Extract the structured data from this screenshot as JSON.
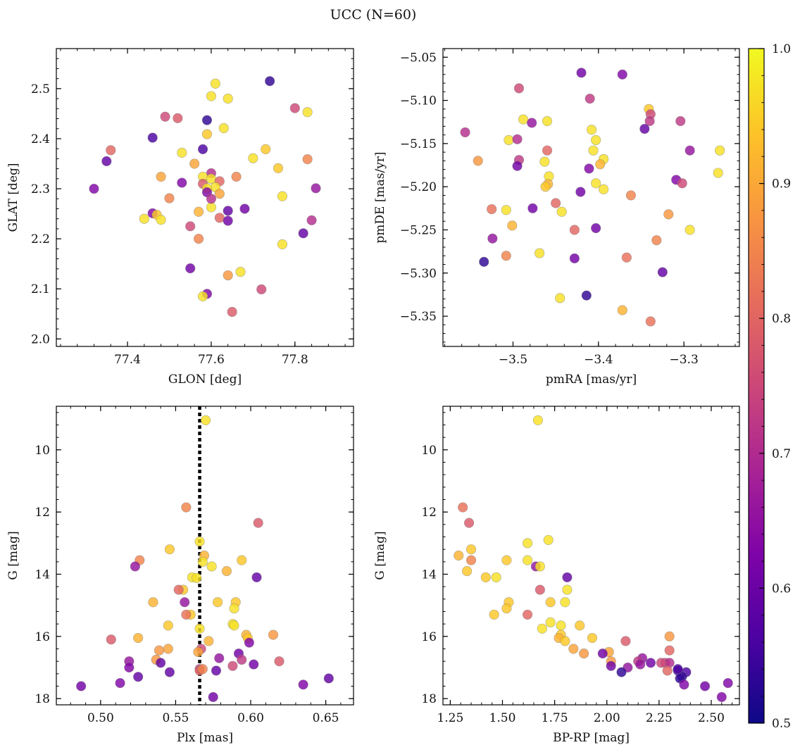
{
  "title": "UCC (N=60)",
  "colorbar": {
    "range": [
      0.5,
      1.0
    ],
    "ticks": [
      0.5,
      0.6,
      0.7,
      0.8,
      0.9,
      1.0
    ],
    "tick_labels": [
      "0.5",
      "0.6",
      "0.7",
      "0.8",
      "0.9",
      "1.0"
    ],
    "colormap": "plasma"
  },
  "chart_data": [
    {
      "id": "sky",
      "type": "scatter",
      "xlabel": "GLON [deg]",
      "ylabel": "GLAT [deg]",
      "xlim": [
        77.23,
        77.94
      ],
      "ylim": [
        1.985,
        2.58
      ],
      "y_inverted": false,
      "xticks": [
        77.4,
        77.6,
        77.8
      ],
      "xtick_labels": [
        "77.4",
        "77.6",
        "77.8"
      ],
      "yticks": [
        2.0,
        2.1,
        2.2,
        2.3,
        2.4,
        2.5
      ],
      "ytick_labels": [
        "2.0",
        "2.1",
        "2.2",
        "2.3",
        "2.4",
        "2.5"
      ],
      "points": [
        [
          77.61,
          2.51,
          0.98
        ],
        [
          77.74,
          2.515,
          0.52
        ],
        [
          77.6,
          2.485,
          0.98
        ],
        [
          77.64,
          2.48,
          0.98
        ],
        [
          77.83,
          2.453,
          0.98
        ],
        [
          77.8,
          2.461,
          0.75
        ],
        [
          77.49,
          2.444,
          0.75
        ],
        [
          77.52,
          2.441,
          0.78
        ],
        [
          77.59,
          2.437,
          0.52
        ],
        [
          77.63,
          2.421,
          0.98
        ],
        [
          77.59,
          2.409,
          0.95
        ],
        [
          77.46,
          2.402,
          0.55
        ],
        [
          77.36,
          2.377,
          0.8
        ],
        [
          77.53,
          2.372,
          0.98
        ],
        [
          77.58,
          2.379,
          0.55
        ],
        [
          77.73,
          2.379,
          0.95
        ],
        [
          77.35,
          2.355,
          0.58
        ],
        [
          77.7,
          2.361,
          0.98
        ],
        [
          77.83,
          2.359,
          0.85
        ],
        [
          77.76,
          2.341,
          0.95
        ],
        [
          77.6,
          2.331,
          0.7
        ],
        [
          77.58,
          2.324,
          0.98
        ],
        [
          77.48,
          2.324,
          0.9
        ],
        [
          77.6,
          2.32,
          0.98
        ],
        [
          77.62,
          2.315,
          0.8
        ],
        [
          77.66,
          2.324,
          0.85
        ],
        [
          77.53,
          2.312,
          0.62
        ],
        [
          77.58,
          2.31,
          0.78
        ],
        [
          77.61,
          2.303,
          0.98
        ],
        [
          77.59,
          2.301,
          0.98
        ],
        [
          77.32,
          2.3,
          0.62
        ],
        [
          77.85,
          2.301,
          0.65
        ],
        [
          77.59,
          2.293,
          0.62
        ],
        [
          77.77,
          2.285,
          0.98
        ],
        [
          77.5,
          2.281,
          0.85
        ],
        [
          77.64,
          2.256,
          0.58
        ],
        [
          77.6,
          2.263,
          0.98
        ],
        [
          77.57,
          2.254,
          0.92
        ],
        [
          77.46,
          2.251,
          0.62
        ],
        [
          77.44,
          2.24,
          0.98
        ],
        [
          77.47,
          2.248,
          0.95
        ],
        [
          77.48,
          2.238,
          0.98
        ],
        [
          77.62,
          2.242,
          0.8
        ],
        [
          77.64,
          2.236,
          0.6
        ],
        [
          77.84,
          2.237,
          0.7
        ],
        [
          77.55,
          2.225,
          0.75
        ],
        [
          77.82,
          2.211,
          0.58
        ],
        [
          77.77,
          2.189,
          0.98
        ],
        [
          77.55,
          2.141,
          0.6
        ],
        [
          77.67,
          2.134,
          0.98
        ],
        [
          77.64,
          2.127,
          0.88
        ],
        [
          77.72,
          2.099,
          0.75
        ],
        [
          77.59,
          2.09,
          0.62
        ],
        [
          77.58,
          2.085,
          0.98
        ],
        [
          77.65,
          2.054,
          0.78
        ],
        [
          77.6,
          2.28,
          0.7
        ],
        [
          77.62,
          2.29,
          0.9
        ],
        [
          77.56,
          2.35,
          0.9
        ],
        [
          77.68,
          2.26,
          0.6
        ],
        [
          77.57,
          2.2,
          0.85
        ]
      ]
    },
    {
      "id": "pm",
      "type": "scatter",
      "xlabel": "pmRA [mas/yr]",
      "ylabel": "pmDE [mas/yr]",
      "xlim": [
        -3.582,
        -3.235
      ],
      "ylim": [
        -5.385,
        -5.04
      ],
      "y_inverted": false,
      "xticks": [
        -3.5,
        -3.4,
        -3.3
      ],
      "xtick_labels": [
        "−3.5",
        "−3.4",
        "−3.3"
      ],
      "yticks": [
        -5.35,
        -5.3,
        -5.25,
        -5.2,
        -5.15,
        -5.1,
        -5.05
      ],
      "ytick_labels": [
        "−5.35",
        "−5.30",
        "−5.25",
        "−5.20",
        "−5.15",
        "−5.10",
        "−5.05"
      ],
      "points": [
        [
          -3.42,
          -5.068,
          0.6
        ],
        [
          -3.372,
          -5.07,
          0.62
        ],
        [
          -3.41,
          -5.098,
          0.72
        ],
        [
          -3.493,
          -5.086,
          0.75
        ],
        [
          -3.341,
          -5.11,
          0.95
        ],
        [
          -3.339,
          -5.116,
          0.75
        ],
        [
          -3.34,
          -5.124,
          0.72
        ],
        [
          -3.304,
          -5.124,
          0.72
        ],
        [
          -3.488,
          -5.122,
          0.98
        ],
        [
          -3.478,
          -5.126,
          0.65
        ],
        [
          -3.46,
          -5.124,
          0.98
        ],
        [
          -3.556,
          -5.137,
          0.7
        ],
        [
          -3.346,
          -5.133,
          0.58
        ],
        [
          -3.408,
          -5.134,
          0.98
        ],
        [
          -3.505,
          -5.146,
          0.98
        ],
        [
          -3.495,
          -5.145,
          0.7
        ],
        [
          -3.403,
          -5.146,
          0.98
        ],
        [
          -3.46,
          -5.158,
          0.8
        ],
        [
          -3.406,
          -5.158,
          0.98
        ],
        [
          -3.293,
          -5.158,
          0.65
        ],
        [
          -3.258,
          -5.158,
          0.98
        ],
        [
          -3.541,
          -5.17,
          0.88
        ],
        [
          -3.493,
          -5.169,
          0.72
        ],
        [
          -3.463,
          -5.171,
          0.98
        ],
        [
          -3.394,
          -5.168,
          0.98
        ],
        [
          -3.398,
          -5.174,
          0.92
        ],
        [
          -3.495,
          -5.176,
          0.6
        ],
        [
          -3.411,
          -5.179,
          0.62
        ],
        [
          -3.458,
          -5.188,
          0.98
        ],
        [
          -3.26,
          -5.184,
          0.98
        ],
        [
          -3.309,
          -5.192,
          0.62
        ],
        [
          -3.302,
          -5.196,
          0.75
        ],
        [
          -3.459,
          -5.197,
          0.92
        ],
        [
          -3.462,
          -5.2,
          0.95
        ],
        [
          -3.403,
          -5.196,
          0.98
        ],
        [
          -3.394,
          -5.203,
          0.98
        ],
        [
          -3.421,
          -5.206,
          0.6
        ],
        [
          -3.362,
          -5.21,
          0.85
        ],
        [
          -3.45,
          -5.219,
          0.8
        ],
        [
          -3.525,
          -5.226,
          0.82
        ],
        [
          -3.508,
          -5.227,
          0.98
        ],
        [
          -3.477,
          -5.225,
          0.6
        ],
        [
          -3.443,
          -5.229,
          0.98
        ],
        [
          -3.318,
          -5.232,
          0.88
        ],
        [
          -3.501,
          -5.245,
          0.92
        ],
        [
          -3.403,
          -5.248,
          0.6
        ],
        [
          -3.428,
          -5.25,
          0.8
        ],
        [
          -3.293,
          -5.25,
          0.98
        ],
        [
          -3.524,
          -5.26,
          0.65
        ],
        [
          -3.332,
          -5.262,
          0.85
        ],
        [
          -3.469,
          -5.277,
          0.98
        ],
        [
          -3.508,
          -5.28,
          0.85
        ],
        [
          -3.367,
          -5.282,
          0.82
        ],
        [
          -3.428,
          -5.283,
          0.6
        ],
        [
          -3.534,
          -5.287,
          0.52
        ],
        [
          -3.325,
          -5.299,
          0.58
        ],
        [
          -3.414,
          -5.326,
          0.52
        ],
        [
          -3.445,
          -5.329,
          0.98
        ],
        [
          -3.372,
          -5.343,
          0.92
        ],
        [
          -3.339,
          -5.356,
          0.82
        ]
      ]
    },
    {
      "id": "plx",
      "type": "scatter",
      "xlabel": "Plx [mas]",
      "ylabel": "G [mag]",
      "xlim": [
        0.4705,
        0.6685
      ],
      "ylim": [
        18.2,
        8.6
      ],
      "y_inverted": true,
      "vline": 0.566,
      "xticks": [
        0.5,
        0.55,
        0.6,
        0.65
      ],
      "xtick_labels": [
        "0.50",
        "0.55",
        "0.60",
        "0.65"
      ],
      "yticks": [
        10,
        12,
        14,
        16,
        18
      ],
      "ytick_labels": [
        "10",
        "12",
        "14",
        "16",
        "18"
      ],
      "points": [
        [
          0.57,
          9.05,
          0.98
        ],
        [
          0.557,
          11.85,
          0.85
        ],
        [
          0.605,
          12.35,
          0.78
        ],
        [
          0.566,
          12.95,
          0.98
        ],
        [
          0.546,
          13.2,
          0.95
        ],
        [
          0.569,
          13.4,
          0.92
        ],
        [
          0.594,
          13.55,
          0.95
        ],
        [
          0.526,
          13.55,
          0.85
        ],
        [
          0.523,
          13.75,
          0.65
        ],
        [
          0.568,
          13.6,
          0.98
        ],
        [
          0.574,
          13.75,
          0.98
        ],
        [
          0.584,
          13.9,
          0.92
        ],
        [
          0.561,
          14.1,
          0.98
        ],
        [
          0.564,
          14.12,
          0.98
        ],
        [
          0.604,
          14.1,
          0.58
        ],
        [
          0.555,
          14.5,
          0.95
        ],
        [
          0.552,
          14.5,
          0.8
        ],
        [
          0.535,
          14.9,
          0.92
        ],
        [
          0.556,
          14.9,
          0.65
        ],
        [
          0.578,
          14.9,
          0.95
        ],
        [
          0.59,
          14.9,
          0.95
        ],
        [
          0.589,
          15.1,
          0.98
        ],
        [
          0.56,
          15.3,
          0.95
        ],
        [
          0.557,
          15.3,
          0.82
        ],
        [
          0.588,
          15.6,
          0.98
        ],
        [
          0.589,
          15.65,
          0.98
        ],
        [
          0.545,
          15.65,
          0.95
        ],
        [
          0.566,
          15.75,
          0.98
        ],
        [
          0.597,
          15.95,
          0.92
        ],
        [
          0.615,
          15.95,
          0.88
        ],
        [
          0.525,
          16.05,
          0.92
        ],
        [
          0.598,
          16.05,
          0.95
        ],
        [
          0.572,
          16.15,
          0.92
        ],
        [
          0.507,
          16.1,
          0.78
        ],
        [
          0.599,
          16.2,
          0.62
        ],
        [
          0.545,
          16.4,
          0.9
        ],
        [
          0.567,
          16.4,
          0.75
        ],
        [
          0.539,
          16.45,
          0.88
        ],
        [
          0.565,
          16.5,
          0.9
        ],
        [
          0.592,
          16.55,
          0.6
        ],
        [
          0.579,
          16.7,
          0.65
        ],
        [
          0.594,
          16.75,
          0.72
        ],
        [
          0.537,
          16.75,
          0.88
        ],
        [
          0.619,
          16.8,
          0.78
        ],
        [
          0.519,
          16.8,
          0.65
        ],
        [
          0.54,
          16.85,
          0.58
        ],
        [
          0.588,
          16.95,
          0.75
        ],
        [
          0.602,
          16.9,
          0.6
        ],
        [
          0.519,
          17.0,
          0.62
        ],
        [
          0.566,
          17.05,
          0.72
        ],
        [
          0.566,
          17.1,
          0.8
        ],
        [
          0.577,
          17.1,
          0.58
        ],
        [
          0.546,
          17.15,
          0.58
        ],
        [
          0.525,
          17.3,
          0.58
        ],
        [
          0.652,
          17.35,
          0.58
        ],
        [
          0.513,
          17.5,
          0.62
        ],
        [
          0.487,
          17.6,
          0.6
        ],
        [
          0.635,
          17.55,
          0.62
        ],
        [
          0.575,
          17.95,
          0.6
        ],
        [
          0.568,
          17.05,
          0.85
        ]
      ]
    },
    {
      "id": "cmd",
      "type": "scatter",
      "xlabel": "BP-RP [mag]",
      "ylabel": "G [mag]",
      "xlim": [
        1.215,
        2.635
      ],
      "ylim": [
        18.2,
        8.6
      ],
      "y_inverted": true,
      "xticks": [
        1.25,
        1.5,
        1.75,
        2.0,
        2.25,
        2.5
      ],
      "xtick_labels": [
        "1.25",
        "1.50",
        "1.75",
        "2.00",
        "2.25",
        "2.50"
      ],
      "yticks": [
        10,
        12,
        14,
        16,
        18
      ],
      "ytick_labels": [
        "10",
        "12",
        "14",
        "16",
        "18"
      ],
      "points": [
        [
          1.67,
          9.05,
          0.98
        ],
        [
          1.31,
          11.85,
          0.82
        ],
        [
          1.34,
          12.35,
          0.78
        ],
        [
          1.72,
          12.9,
          0.98
        ],
        [
          1.62,
          13.0,
          0.98
        ],
        [
          1.35,
          13.2,
          0.95
        ],
        [
          1.29,
          13.4,
          0.92
        ],
        [
          1.35,
          13.55,
          0.85
        ],
        [
          1.52,
          13.55,
          0.95
        ],
        [
          1.62,
          13.55,
          0.98
        ],
        [
          1.66,
          13.75,
          0.65
        ],
        [
          1.68,
          13.75,
          0.98
        ],
        [
          1.33,
          13.9,
          0.95
        ],
        [
          1.42,
          14.1,
          0.95
        ],
        [
          1.47,
          14.1,
          0.98
        ],
        [
          1.81,
          14.1,
          0.58
        ],
        [
          1.81,
          14.5,
          0.98
        ],
        [
          1.68,
          14.5,
          0.78
        ],
        [
          1.73,
          14.9,
          0.95
        ],
        [
          1.53,
          14.9,
          0.95
        ],
        [
          1.8,
          14.9,
          0.98
        ],
        [
          1.52,
          15.1,
          0.95
        ],
        [
          1.62,
          15.3,
          0.8
        ],
        [
          1.46,
          15.3,
          0.95
        ],
        [
          1.73,
          15.55,
          0.98
        ],
        [
          1.78,
          15.65,
          0.98
        ],
        [
          1.87,
          15.65,
          0.95
        ],
        [
          1.69,
          15.75,
          0.98
        ],
        [
          1.78,
          15.95,
          0.95
        ],
        [
          1.77,
          16.05,
          0.92
        ],
        [
          1.93,
          16.05,
          0.95
        ],
        [
          2.3,
          16.0,
          0.88
        ],
        [
          1.8,
          16.15,
          0.95
        ],
        [
          2.09,
          16.15,
          0.78
        ],
        [
          1.84,
          16.4,
          0.9
        ],
        [
          2.3,
          16.45,
          0.8
        ],
        [
          2.01,
          16.5,
          0.9
        ],
        [
          1.89,
          16.55,
          0.88
        ],
        [
          1.98,
          16.55,
          0.6
        ],
        [
          2.17,
          16.7,
          0.65
        ],
        [
          2.15,
          16.8,
          0.72
        ],
        [
          2.02,
          16.8,
          0.88
        ],
        [
          2.28,
          16.85,
          0.75
        ],
        [
          2.21,
          16.85,
          0.6
        ],
        [
          2.3,
          16.85,
          0.7
        ],
        [
          2.16,
          16.9,
          0.65
        ],
        [
          2.02,
          16.95,
          0.6
        ],
        [
          2.1,
          17.0,
          0.65
        ],
        [
          2.34,
          17.1,
          0.55
        ],
        [
          2.38,
          17.15,
          0.55
        ],
        [
          2.29,
          17.1,
          0.8
        ],
        [
          2.07,
          17.15,
          0.52
        ],
        [
          2.36,
          17.3,
          0.52
        ],
        [
          2.35,
          17.35,
          0.52
        ],
        [
          2.58,
          17.5,
          0.62
        ],
        [
          2.37,
          17.55,
          0.62
        ],
        [
          2.47,
          17.6,
          0.6
        ],
        [
          2.55,
          17.95,
          0.62
        ],
        [
          2.34,
          17.05,
          0.55
        ],
        [
          2.26,
          16.85,
          0.75
        ]
      ]
    }
  ]
}
